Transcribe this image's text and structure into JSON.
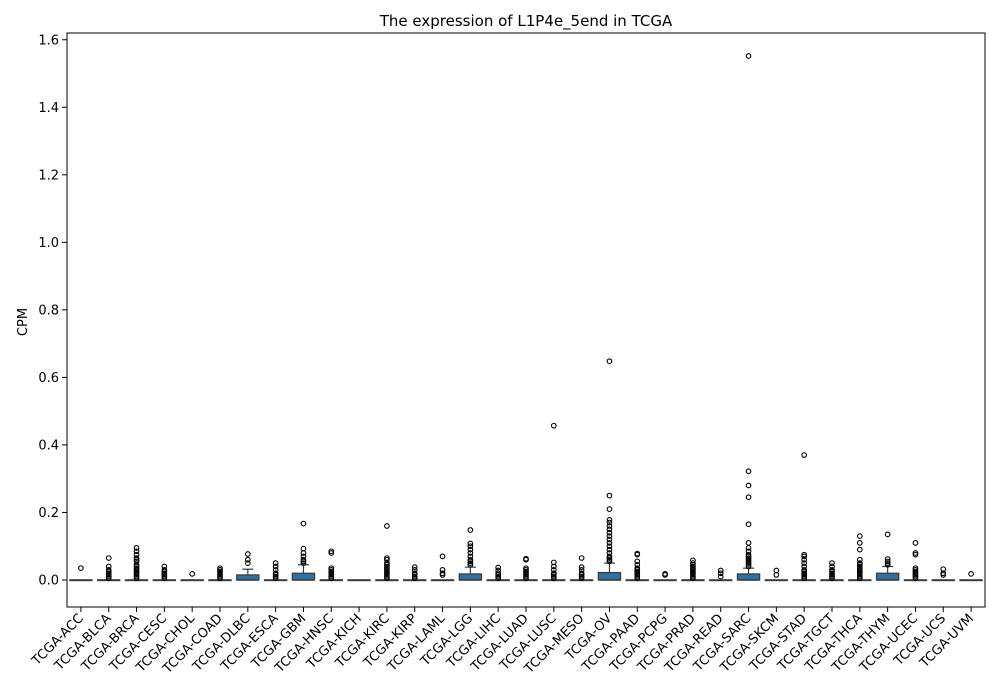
{
  "chart_data": {
    "type": "box",
    "title": "The expression of L1P4e_5end in TCGA",
    "xlabel": "",
    "ylabel": "CPM",
    "ylim": [
      -0.08,
      1.62
    ],
    "yticks": [
      0.0,
      0.2,
      0.4,
      0.6,
      0.8,
      1.0,
      1.2,
      1.4,
      1.6
    ],
    "ytick_labels": [
      "0.0",
      "0.2",
      "0.4",
      "0.6",
      "0.8",
      "1.0",
      "1.2",
      "1.4",
      "1.6"
    ],
    "box_color": "#2f6f9f",
    "categories": [
      "TCGA-ACC",
      "TCGA-BLCA",
      "TCGA-BRCA",
      "TCGA-CESC",
      "TCGA-CHOL",
      "TCGA-COAD",
      "TCGA-DLBC",
      "TCGA-ESCA",
      "TCGA-GBM",
      "TCGA-HNSC",
      "TCGA-KICH",
      "TCGA-KIRC",
      "TCGA-KIRP",
      "TCGA-LAML",
      "TCGA-LGG",
      "TCGA-LIHC",
      "TCGA-LUAD",
      "TCGA-LUSC",
      "TCGA-MESO",
      "TCGA-OV",
      "TCGA-PAAD",
      "TCGA-PCPG",
      "TCGA-PRAD",
      "TCGA-READ",
      "TCGA-SARC",
      "TCGA-SKCM",
      "TCGA-STAD",
      "TCGA-TGCT",
      "TCGA-THCA",
      "TCGA-THYM",
      "TCGA-UCEC",
      "TCGA-UCS",
      "TCGA-UVM"
    ],
    "boxes": [
      {
        "q1": 0,
        "median": 0,
        "q3": 0,
        "whisker_high": 0,
        "outliers": [
          0.035
        ]
      },
      {
        "q1": 0,
        "median": 0,
        "q3": 0,
        "whisker_high": 0,
        "outliers": [
          0.005,
          0.01,
          0.015,
          0.02,
          0.025,
          0.03,
          0.04,
          0.065
        ]
      },
      {
        "q1": 0,
        "median": 0,
        "q3": 0,
        "whisker_high": 0,
        "outliers": [
          0.005,
          0.01,
          0.015,
          0.02,
          0.025,
          0.03,
          0.035,
          0.04,
          0.045,
          0.055,
          0.06,
          0.065,
          0.075,
          0.085,
          0.095
        ]
      },
      {
        "q1": 0,
        "median": 0,
        "q3": 0,
        "whisker_high": 0,
        "outliers": [
          0.005,
          0.01,
          0.015,
          0.02,
          0.025,
          0.03,
          0.04
        ]
      },
      {
        "q1": 0,
        "median": 0,
        "q3": 0,
        "whisker_high": 0,
        "outliers": [
          0.018
        ]
      },
      {
        "q1": 0,
        "median": 0,
        "q3": 0,
        "whisker_high": 0,
        "outliers": [
          0.005,
          0.01,
          0.015,
          0.02,
          0.025,
          0.03,
          0.035
        ]
      },
      {
        "q1": 0,
        "median": 0,
        "q3": 0.015,
        "whisker_high": 0.032,
        "outliers": [
          0.05,
          0.06,
          0.077
        ]
      },
      {
        "q1": 0,
        "median": 0,
        "q3": 0,
        "whisker_high": 0,
        "outliers": [
          0.005,
          0.01,
          0.015,
          0.02,
          0.03,
          0.04,
          0.05
        ]
      },
      {
        "q1": 0,
        "median": 0,
        "q3": 0.02,
        "whisker_high": 0.045,
        "outliers": [
          0.05,
          0.055,
          0.06,
          0.07,
          0.08,
          0.093,
          0.167
        ]
      },
      {
        "q1": 0,
        "median": 0,
        "q3": 0,
        "whisker_high": 0,
        "outliers": [
          0.005,
          0.01,
          0.015,
          0.02,
          0.025,
          0.03,
          0.035,
          0.08,
          0.085
        ]
      },
      {
        "q1": 0,
        "median": 0,
        "q3": 0,
        "whisker_high": 0,
        "outliers": []
      },
      {
        "q1": 0,
        "median": 0,
        "q3": 0,
        "whisker_high": 0,
        "outliers": [
          0.005,
          0.01,
          0.015,
          0.02,
          0.025,
          0.03,
          0.035,
          0.04,
          0.045,
          0.05,
          0.06,
          0.065,
          0.16
        ]
      },
      {
        "q1": 0,
        "median": 0,
        "q3": 0,
        "whisker_high": 0,
        "outliers": [
          0.005,
          0.01,
          0.015,
          0.02,
          0.03,
          0.038
        ]
      },
      {
        "q1": 0,
        "median": 0,
        "q3": 0,
        "whisker_high": 0,
        "outliers": [
          0.015,
          0.02,
          0.03,
          0.07
        ]
      },
      {
        "q1": 0,
        "median": 0,
        "q3": 0.018,
        "whisker_high": 0.038,
        "outliers": [
          0.045,
          0.05,
          0.055,
          0.06,
          0.07,
          0.08,
          0.09,
          0.1,
          0.108,
          0.148
        ]
      },
      {
        "q1": 0,
        "median": 0,
        "q3": 0,
        "whisker_high": 0,
        "outliers": [
          0.005,
          0.01,
          0.015,
          0.02,
          0.028,
          0.037
        ]
      },
      {
        "q1": 0,
        "median": 0,
        "q3": 0,
        "whisker_high": 0,
        "outliers": [
          0.005,
          0.01,
          0.015,
          0.02,
          0.025,
          0.03,
          0.035,
          0.06,
          0.063
        ]
      },
      {
        "q1": 0,
        "median": 0,
        "q3": 0,
        "whisker_high": 0,
        "outliers": [
          0.005,
          0.01,
          0.015,
          0.02,
          0.03,
          0.04,
          0.052,
          0.457
        ]
      },
      {
        "q1": 0,
        "median": 0,
        "q3": 0,
        "whisker_high": 0,
        "outliers": [
          0.005,
          0.01,
          0.015,
          0.02,
          0.03,
          0.038,
          0.065
        ]
      },
      {
        "q1": 0,
        "median": 0,
        "q3": 0.022,
        "whisker_high": 0.05,
        "outliers": [
          0.055,
          0.06,
          0.065,
          0.07,
          0.08,
          0.09,
          0.1,
          0.11,
          0.12,
          0.13,
          0.14,
          0.15,
          0.16,
          0.17,
          0.178,
          0.21,
          0.25,
          0.648
        ]
      },
      {
        "q1": 0,
        "median": 0,
        "q3": 0,
        "whisker_high": 0,
        "outliers": [
          0.005,
          0.01,
          0.015,
          0.02,
          0.025,
          0.03,
          0.035,
          0.045,
          0.055,
          0.075,
          0.078
        ]
      },
      {
        "q1": 0,
        "median": 0,
        "q3": 0,
        "whisker_high": 0,
        "outliers": [
          0.015,
          0.018
        ]
      },
      {
        "q1": 0,
        "median": 0,
        "q3": 0,
        "whisker_high": 0,
        "outliers": [
          0.005,
          0.01,
          0.015,
          0.02,
          0.025,
          0.03,
          0.035,
          0.04,
          0.045,
          0.05,
          0.058
        ]
      },
      {
        "q1": 0,
        "median": 0,
        "q3": 0,
        "whisker_high": 0,
        "outliers": [
          0.01,
          0.02,
          0.028
        ]
      },
      {
        "q1": 0,
        "median": 0,
        "q3": 0.018,
        "whisker_high": 0.035,
        "outliers": [
          0.04,
          0.045,
          0.05,
          0.055,
          0.06,
          0.065,
          0.07,
          0.075,
          0.085,
          0.095,
          0.11,
          0.165,
          0.245,
          0.28,
          0.322,
          1.552
        ]
      },
      {
        "q1": 0,
        "median": 0,
        "q3": 0,
        "whisker_high": 0,
        "outliers": [
          0.015,
          0.028
        ]
      },
      {
        "q1": 0,
        "median": 0,
        "q3": 0,
        "whisker_high": 0,
        "outliers": [
          0.005,
          0.01,
          0.015,
          0.02,
          0.025,
          0.03,
          0.04,
          0.05,
          0.06,
          0.07,
          0.075,
          0.37
        ]
      },
      {
        "q1": 0,
        "median": 0,
        "q3": 0,
        "whisker_high": 0,
        "outliers": [
          0.005,
          0.01,
          0.015,
          0.02,
          0.025,
          0.03,
          0.04,
          0.05
        ]
      },
      {
        "q1": 0,
        "median": 0,
        "q3": 0,
        "whisker_high": 0,
        "outliers": [
          0.005,
          0.01,
          0.015,
          0.02,
          0.025,
          0.03,
          0.035,
          0.04,
          0.045,
          0.05,
          0.06,
          0.09,
          0.11,
          0.13
        ]
      },
      {
        "q1": 0,
        "median": 0,
        "q3": 0.02,
        "whisker_high": 0.04,
        "outliers": [
          0.045,
          0.05,
          0.055,
          0.062,
          0.135
        ]
      },
      {
        "q1": 0,
        "median": 0,
        "q3": 0,
        "whisker_high": 0,
        "outliers": [
          0.005,
          0.01,
          0.015,
          0.02,
          0.025,
          0.03,
          0.035,
          0.075,
          0.08,
          0.11
        ]
      },
      {
        "q1": 0,
        "median": 0,
        "q3": 0,
        "whisker_high": 0,
        "outliers": [
          0.015,
          0.02,
          0.032
        ]
      },
      {
        "q1": 0,
        "median": 0,
        "q3": 0,
        "whisker_high": 0,
        "outliers": [
          0.018
        ]
      }
    ]
  }
}
